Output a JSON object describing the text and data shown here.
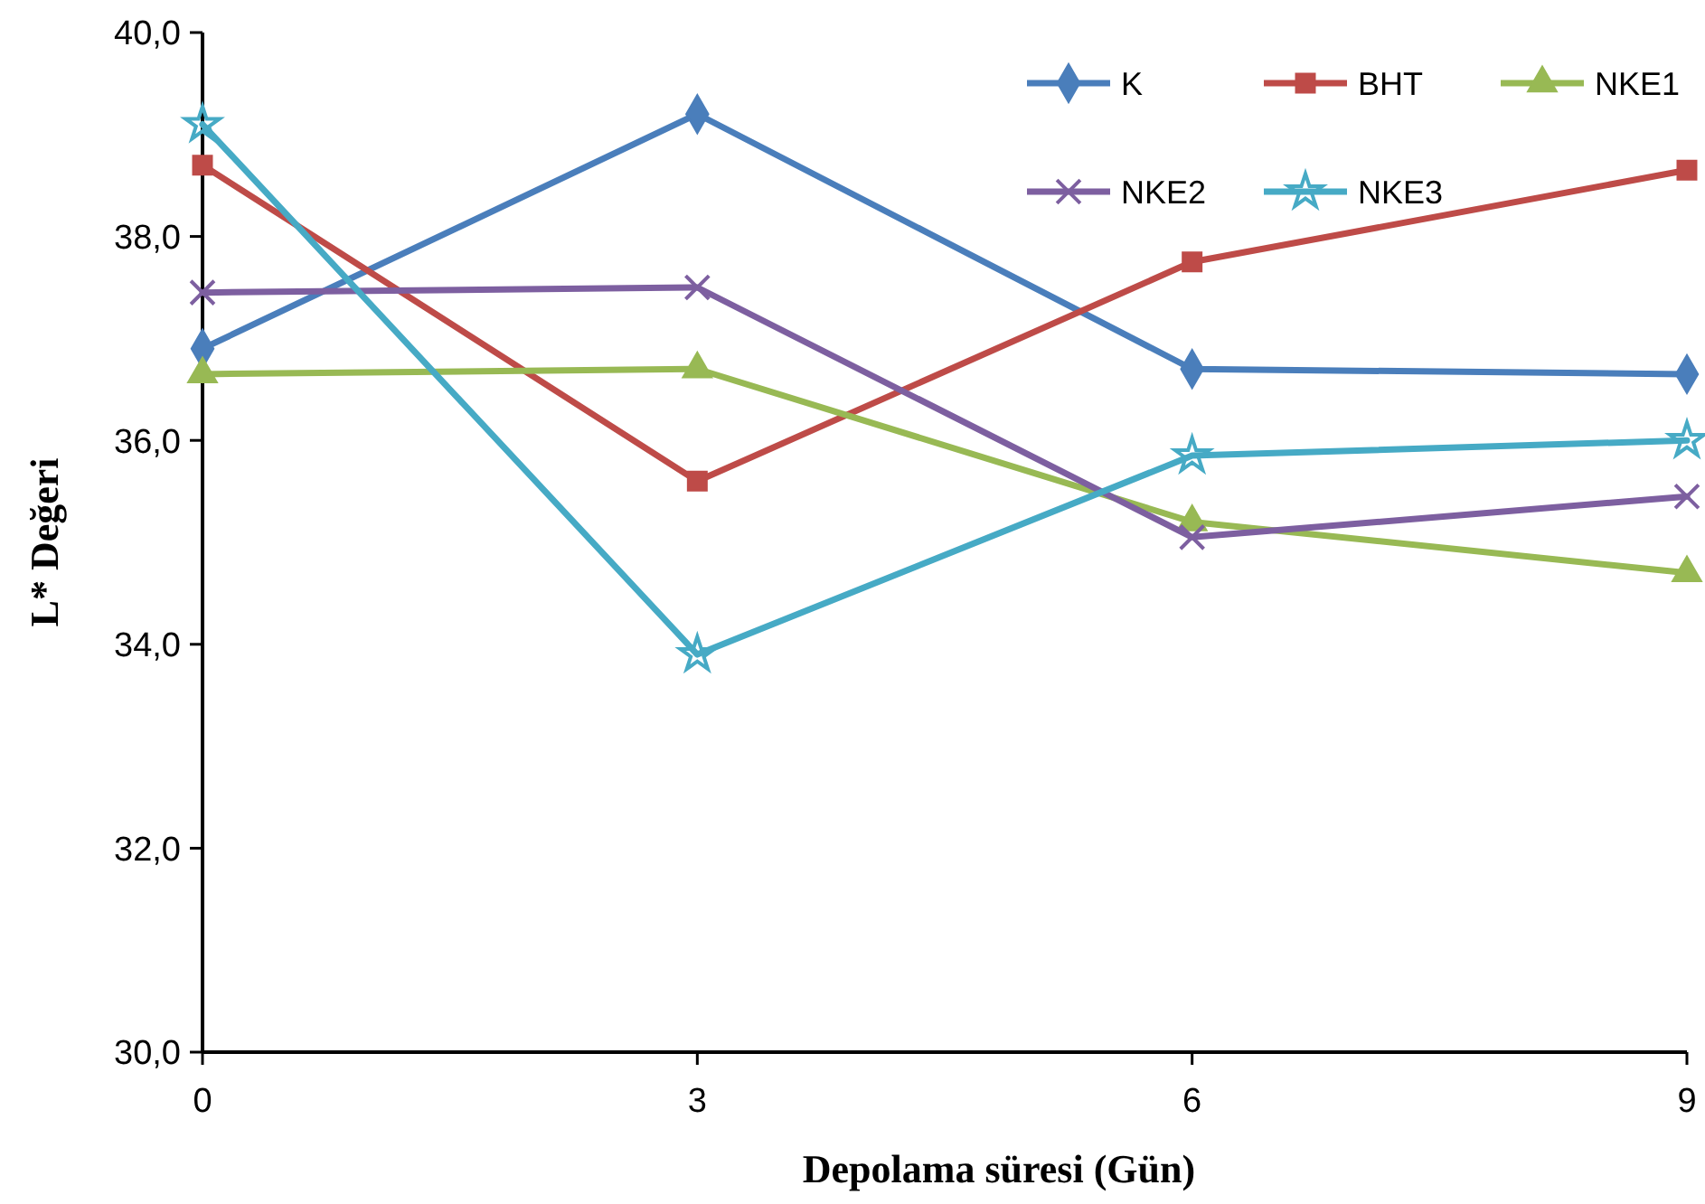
{
  "chart_data": {
    "type": "line",
    "xlabel": "Depolama süresi (Gün)",
    "ylabel": "L* Değeri",
    "x": [
      0,
      3,
      6,
      9
    ],
    "xlim": [
      0,
      9
    ],
    "xticks": [
      0,
      3,
      6,
      9
    ],
    "ylim": [
      30,
      40
    ],
    "yticks": [
      {
        "value": 30,
        "label": "30,0"
      },
      {
        "value": 32,
        "label": "32,0"
      },
      {
        "value": 34,
        "label": "34,0"
      },
      {
        "value": 36,
        "label": "36,0"
      },
      {
        "value": 38,
        "label": "38,0"
      },
      {
        "value": 40,
        "label": "40,0"
      }
    ],
    "grid": false,
    "legend": "top right",
    "line_style": "solid",
    "series": [
      {
        "name": "K",
        "color": "#4a7ebb",
        "marker": "diamond",
        "values": [
          36.9,
          39.2,
          36.7,
          36.65
        ]
      },
      {
        "name": "BHT",
        "color": "#be4b48",
        "marker": "square",
        "values": [
          38.7,
          35.6,
          37.75,
          38.65
        ]
      },
      {
        "name": "NKE1",
        "color": "#98b954",
        "marker": "triangle",
        "values": [
          36.65,
          36.7,
          35.2,
          34.7
        ]
      },
      {
        "name": "NKE2",
        "color": "#7d5fa0",
        "marker": "cross",
        "values": [
          37.45,
          37.5,
          35.05,
          35.45
        ]
      },
      {
        "name": "NKE3",
        "color": "#46aac5",
        "marker": "star",
        "values": [
          39.1,
          33.9,
          35.85,
          36.0
        ]
      }
    ]
  }
}
